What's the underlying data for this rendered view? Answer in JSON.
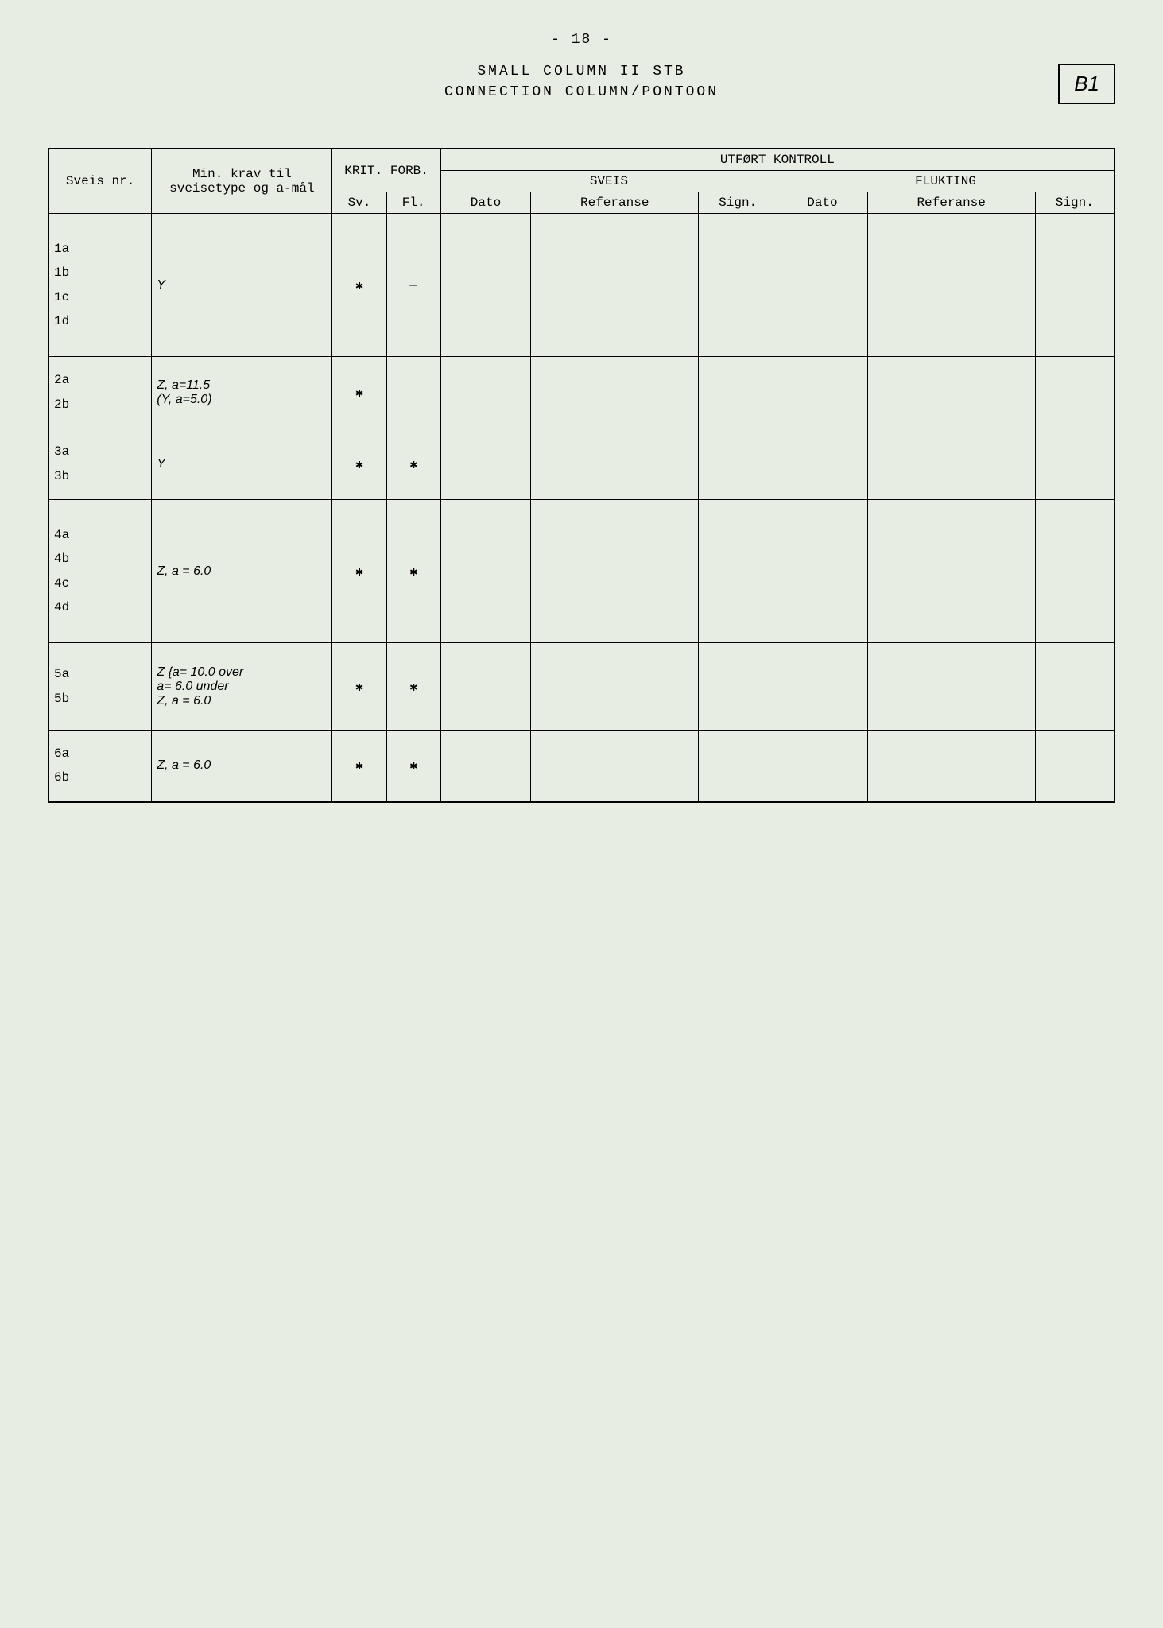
{
  "page": {
    "number": "- 18 -",
    "title_line1": "SMALL COLUMN II STB",
    "title_line2": "CONNECTION COLUMN/PONTOON",
    "doc_code": "B1"
  },
  "table": {
    "headers": {
      "sveis_nr": "Sveis nr.",
      "min_krav": "Min. krav til sveisetype og a-mål",
      "krit_forb": "KRIT. FORB.",
      "sv": "Sv.",
      "fl_short": "Fl.",
      "utfort_kontroll": "UTFØRT KONTROLL",
      "sveis": "SVEIS",
      "flukting": "FLUKTING",
      "dato": "Dato",
      "referanse": "Referanse",
      "sign": "Sign."
    },
    "rows": [
      {
        "nr": [
          "1a",
          "1b",
          "1c",
          "1d"
        ],
        "minkrav": "Y",
        "sv": "✱",
        "fl": "—",
        "height": "xtall"
      },
      {
        "nr": [
          "2a",
          "2b"
        ],
        "minkrav": "Z, a=11.5\n(Y, a=5.0)",
        "sv": "✱",
        "fl": "",
        "height": "med"
      },
      {
        "nr": [
          "3a",
          "3b"
        ],
        "minkrav": "Y",
        "sv": "✱",
        "fl": "✱",
        "height": "med"
      },
      {
        "nr": [
          "4a",
          "4b",
          "4c",
          "4d"
        ],
        "minkrav": "Z, a = 6.0",
        "sv": "✱",
        "fl": "✱",
        "height": "xtall"
      },
      {
        "nr": [
          "5a",
          "5b"
        ],
        "minkrav": "Z {a= 10.0 over\n   a= 6.0 under\nZ, a = 6.0",
        "sv": "✱",
        "fl": "✱",
        "height": "tall"
      },
      {
        "nr": [
          "6a",
          "6b"
        ],
        "minkrav": "Z, a = 6.0",
        "sv": "✱",
        "fl": "✱",
        "height": "med"
      }
    ]
  },
  "colors": {
    "background": "#e8ede4",
    "border": "#000000",
    "text": "#000000"
  }
}
